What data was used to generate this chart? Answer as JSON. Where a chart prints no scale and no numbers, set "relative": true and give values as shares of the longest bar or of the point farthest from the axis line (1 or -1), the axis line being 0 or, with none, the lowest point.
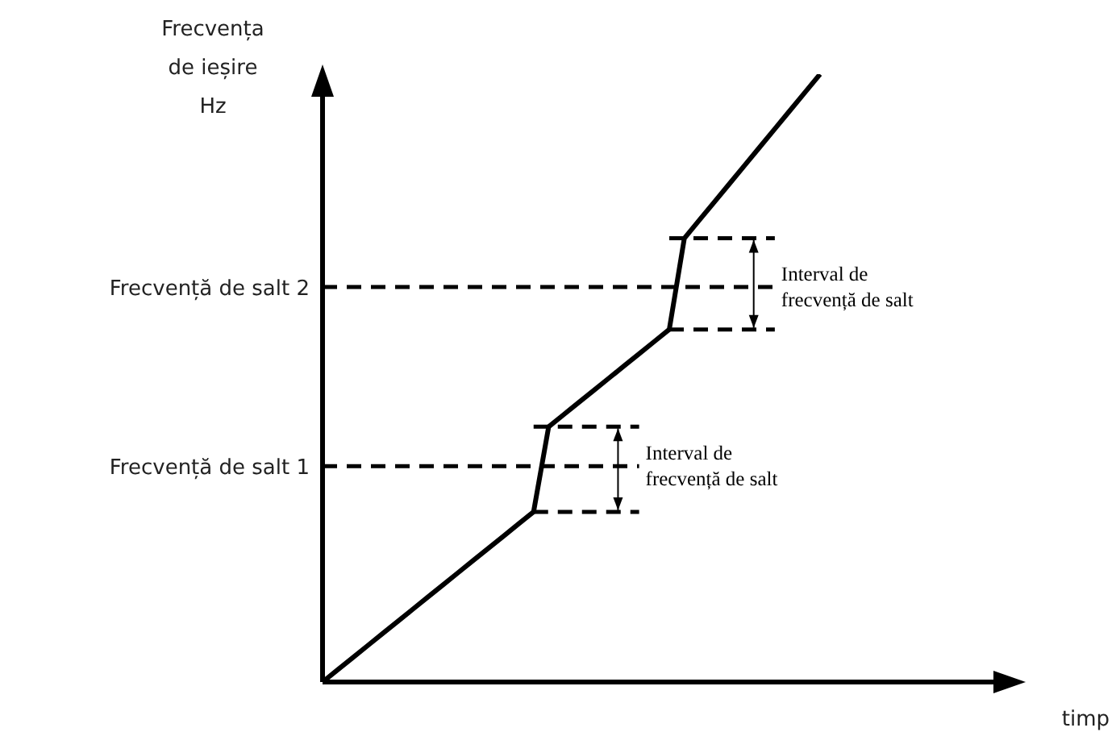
{
  "chart_data": {
    "type": "line",
    "relative": true,
    "ylabel": "Frecvența de ieșire Hz",
    "xlabel": "timp",
    "categories": [
      null,
      null,
      null,
      null,
      null,
      null,
      null,
      null,
      null,
      null,
      null,
      null,
      null,
      null,
      null,
      null,
      null,
      null,
      null,
      null,
      null,
      null,
      null,
      null,
      null,
      null,
      null,
      null,
      null,
      null,
      null,
      null,
      null,
      null,
      null,
      null,
      null,
      null,
      null,
      null,
      null,
      null,
      null,
      null,
      null,
      null,
      null
    ],
    "series": [
      {
        "color": "#000000",
        "values": [
          0,
          0.02,
          0.04,
          0.06,
          0.08,
          0.1,
          0.12,
          0.14,
          0.16,
          0.18,
          0.2,
          0.22,
          0.24,
          0.26,
          0.28,
          0.42,
          0.44,
          0.46,
          0.48,
          0.5,
          0.52,
          0.54,
          0.56,
          0.58,
          0.73,
          0.76,
          0.79,
          0.82,
          0.85,
          0.88,
          0.91,
          0.94,
          0.97,
          1,
          null,
          null,
          null,
          null,
          null,
          null,
          null,
          null,
          null,
          null,
          null,
          null,
          null
        ]
      }
    ],
    "marker": "none",
    "line_style": "solid",
    "ref_lines": [
      {
        "axis": "y",
        "value": 0.28,
        "color": "#000000",
        "line_style": "dashed"
      },
      {
        "axis": "y",
        "value": 0.355,
        "label": "Frecvență de salt 1",
        "color": "#000000",
        "line_style": "dashed"
      },
      {
        "axis": "y",
        "value": 0.42,
        "color": "#000000",
        "line_style": "dashed"
      },
      {
        "axis": "y",
        "value": 0.58,
        "color": "#000000",
        "line_style": "dashed"
      },
      {
        "axis": "y",
        "value": 0.65,
        "label": "Frecvență de salt 2",
        "color": "#000000",
        "line_style": "dashed"
      },
      {
        "axis": "y",
        "value": 0.73,
        "color": "#000000",
        "line_style": "dashed"
      }
    ],
    "annotations": [
      "Interval de frecvență de salt",
      "Interval de frecvență de salt"
    ]
  }
}
